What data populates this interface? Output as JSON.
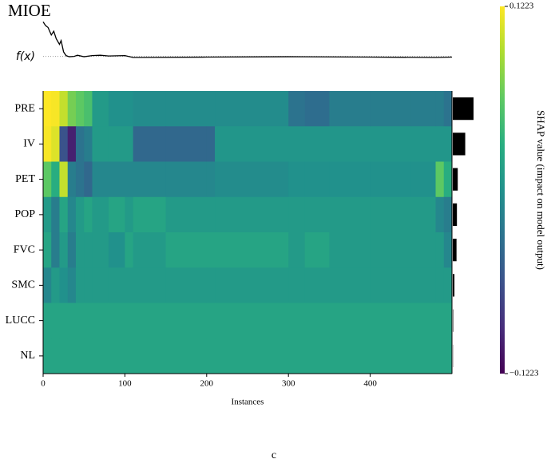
{
  "chart_data": {
    "type": "heatmap",
    "title": "MIOE",
    "fx_label": "f(x)",
    "x_label": "Instances",
    "colorbar_label": "SHAP value (impact on model output)",
    "caption": "c",
    "categories": [
      "PRE",
      "IV",
      "PET",
      "POP",
      "FVC",
      "SMC",
      "LUCC",
      "NL"
    ],
    "bins": [
      0,
      10,
      20,
      30,
      40,
      50,
      60,
      80,
      100,
      110,
      150,
      200,
      210,
      250,
      300,
      320,
      350,
      400,
      450,
      480,
      490,
      500
    ],
    "values": [
      [
        0.1223,
        0.12,
        0.1,
        0.07,
        0.06,
        0.05,
        0.01,
        0,
        0,
        -0.005,
        -0.005,
        -0.005,
        -0.005,
        -0.005,
        -0.03,
        -0.035,
        -0.02,
        -0.02,
        -0.02,
        -0.02,
        -0.03
      ],
      [
        0.12,
        0.11,
        -0.06,
        -0.1,
        -0.03,
        -0.02,
        0.01,
        0.01,
        0.01,
        -0.04,
        -0.04,
        -0.04,
        0.005,
        0.005,
        0.005,
        0.005,
        0.005,
        0.005,
        0.005,
        0.005,
        0.005
      ],
      [
        0.06,
        0.03,
        0.1,
        -0.02,
        -0.03,
        -0.04,
        -0.01,
        -0.01,
        -0.01,
        -0.01,
        -0.01,
        -0.01,
        -0.005,
        -0.005,
        0,
        0,
        0,
        0,
        0,
        0.06,
        0.03
      ],
      [
        0.01,
        -0.02,
        0.02,
        -0.01,
        0.01,
        0.02,
        0.01,
        0.02,
        0.01,
        0.02,
        0.01,
        0.01,
        0.01,
        0.01,
        0.01,
        0.01,
        0.01,
        0.01,
        0.01,
        -0.01,
        -0.02
      ],
      [
        0.02,
        -0.02,
        0.01,
        -0.02,
        0.01,
        0.01,
        0.01,
        0,
        0.02,
        0.01,
        0.02,
        0.02,
        0.02,
        0.02,
        0.01,
        0.02,
        0.01,
        0.01,
        0.01,
        0.01,
        -0.01
      ],
      [
        -0.01,
        0.01,
        0,
        -0.01,
        0.01,
        0.01,
        0.01,
        0.01,
        0.01,
        0.01,
        0.01,
        0.01,
        0.01,
        0.01,
        0.01,
        0.01,
        0.01,
        0.01,
        0.01,
        0.01,
        0.01
      ],
      [
        0.02,
        0.02,
        0.02,
        0.02,
        0.02,
        0.02,
        0.02,
        0.02,
        0.02,
        0.02,
        0.02,
        0.02,
        0.02,
        0.02,
        0.02,
        0.02,
        0.02,
        0.02,
        0.02,
        0.02,
        0.02
      ],
      [
        0.02,
        0.02,
        0.02,
        0.02,
        0.02,
        0.02,
        0.02,
        0.02,
        0.02,
        0.02,
        0.02,
        0.02,
        0.02,
        0.02,
        0.02,
        0.02,
        0.02,
        0.02,
        0.02,
        0.02,
        0.02
      ]
    ],
    "importance": [
      0.05,
      0.03,
      0.012,
      0.01,
      0.009,
      0.004,
      0.001,
      0.0005
    ],
    "importance_color": "#000000",
    "xlim": [
      0,
      500
    ],
    "xticks": [
      0,
      100,
      200,
      300,
      400
    ],
    "colorbar_lim": [
      -0.1223,
      0.1223
    ],
    "colorbar_ticks": [
      {
        "value": -0.1223,
        "label": "−0.1223"
      },
      0.1223
    ],
    "fx": {
      "x": [
        0,
        3,
        6,
        10,
        13,
        16,
        20,
        22,
        25,
        28,
        32,
        38,
        42,
        50,
        60,
        70,
        80,
        100,
        110,
        200,
        300,
        400,
        480,
        500
      ],
      "values": [
        0.95,
        0.85,
        0.8,
        0.6,
        0.7,
        0.5,
        0.35,
        0.45,
        0.15,
        0.05,
        0.02,
        0.03,
        0.06,
        0.02,
        0.05,
        0.06,
        0.04,
        0.05,
        0.0,
        0.01,
        0.02,
        0.01,
        0.0,
        0.01
      ],
      "ylim": [
        0,
        1
      ],
      "baseline": 0.03,
      "color": "#000000"
    }
  }
}
